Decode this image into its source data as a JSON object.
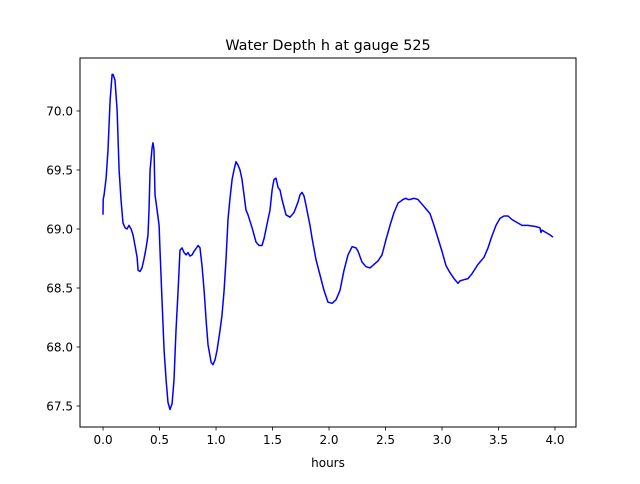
{
  "chart_data": {
    "type": "line",
    "title": "Water Depth h at gauge 525",
    "xlabel": "hours",
    "ylabel": "",
    "xlim": [
      -0.204,
      4.186
    ],
    "ylim": [
      67.322,
      70.449
    ],
    "xticks": [
      0.0,
      0.5,
      1.0,
      1.5,
      2.0,
      2.5,
      3.0,
      3.5,
      4.0
    ],
    "xtick_labels": [
      "0.0",
      "0.5",
      "1.0",
      "1.5",
      "2.0",
      "2.5",
      "3.0",
      "3.5",
      "4.0"
    ],
    "yticks": [
      67.5,
      68.0,
      68.5,
      69.0,
      69.5,
      70.0
    ],
    "ytick_labels": [
      "67.5",
      "68.0",
      "68.5",
      "69.0",
      "69.5",
      "70.0"
    ],
    "grid": false,
    "series": [
      {
        "name": "h",
        "color": "#0000ff",
        "x": [
          0.0,
          0.001,
          0.009,
          0.027,
          0.044,
          0.062,
          0.08,
          0.088,
          0.106,
          0.124,
          0.142,
          0.159,
          0.177,
          0.195,
          0.212,
          0.23,
          0.248,
          0.265,
          0.283,
          0.301,
          0.31,
          0.327,
          0.345,
          0.363,
          0.381,
          0.398,
          0.407,
          0.416,
          0.434,
          0.442,
          0.451,
          0.46,
          0.478,
          0.496,
          0.504,
          0.522,
          0.54,
          0.558,
          0.575,
          0.593,
          0.611,
          0.628,
          0.646,
          0.664,
          0.681,
          0.699,
          0.717,
          0.735,
          0.752,
          0.77,
          0.788,
          0.805,
          0.841,
          0.858,
          0.876,
          0.894,
          0.912,
          0.929,
          0.956,
          0.973,
          0.991,
          1.009,
          1.035,
          1.053,
          1.071,
          1.088,
          1.106,
          1.124,
          1.142,
          1.159,
          1.177,
          1.195,
          1.212,
          1.23,
          1.265,
          1.283,
          1.319,
          1.354,
          1.381,
          1.407,
          1.425,
          1.46,
          1.478,
          1.496,
          1.513,
          1.531,
          1.549,
          1.566,
          1.584,
          1.619,
          1.655,
          1.69,
          1.726,
          1.743,
          1.761,
          1.779,
          1.796,
          1.832,
          1.85,
          1.885,
          1.92,
          1.956,
          1.991,
          2.027,
          2.062,
          2.097,
          2.133,
          2.168,
          2.204,
          2.239,
          2.257,
          2.292,
          2.327,
          2.363,
          2.398,
          2.434,
          2.469,
          2.504,
          2.54,
          2.575,
          2.611,
          2.628,
          2.655,
          2.681,
          2.699,
          2.717,
          2.752,
          2.788,
          2.823,
          2.858,
          2.894,
          2.929,
          2.965,
          3.0,
          3.035,
          3.071,
          3.106,
          3.142,
          3.159,
          3.195,
          3.23,
          3.265,
          3.319,
          3.372,
          3.407,
          3.442,
          3.478,
          3.513,
          3.549,
          3.584,
          3.619,
          3.655,
          3.708,
          3.761,
          3.832,
          3.867,
          3.876,
          3.885,
          3.92,
          3.956,
          3.982
        ],
        "y": [
          69.12,
          69.25,
          69.29,
          69.43,
          69.67,
          70.09,
          70.31,
          70.31,
          70.26,
          70.01,
          69.5,
          69.25,
          69.05,
          69.01,
          69.0,
          69.03,
          69.0,
          68.95,
          68.86,
          68.76,
          68.65,
          68.64,
          68.67,
          68.75,
          68.84,
          68.95,
          69.16,
          69.5,
          69.69,
          69.73,
          69.67,
          69.29,
          69.16,
          69.03,
          68.82,
          68.4,
          67.97,
          67.72,
          67.53,
          67.47,
          67.52,
          67.72,
          68.14,
          68.48,
          68.82,
          68.84,
          68.8,
          68.78,
          68.8,
          68.77,
          68.78,
          68.81,
          68.86,
          68.84,
          68.69,
          68.48,
          68.23,
          68.02,
          67.87,
          67.85,
          67.89,
          67.97,
          68.14,
          68.27,
          68.48,
          68.74,
          69.08,
          69.26,
          69.42,
          69.5,
          69.57,
          69.54,
          69.5,
          69.42,
          69.16,
          69.12,
          69.01,
          68.89,
          68.86,
          68.86,
          68.92,
          69.08,
          69.16,
          69.33,
          69.42,
          69.43,
          69.35,
          69.33,
          69.25,
          69.12,
          69.1,
          69.14,
          69.23,
          69.29,
          69.31,
          69.28,
          69.2,
          69.03,
          68.92,
          68.74,
          68.61,
          68.48,
          68.38,
          68.37,
          68.4,
          68.48,
          68.65,
          68.78,
          68.85,
          68.84,
          68.81,
          68.72,
          68.68,
          68.67,
          68.7,
          68.73,
          68.78,
          68.91,
          69.03,
          69.14,
          69.22,
          69.23,
          69.25,
          69.26,
          69.25,
          69.25,
          69.26,
          69.25,
          69.21,
          69.17,
          69.13,
          69.03,
          68.92,
          68.81,
          68.69,
          68.63,
          68.58,
          68.54,
          68.56,
          68.57,
          68.58,
          68.62,
          68.7,
          68.76,
          68.84,
          68.94,
          69.03,
          69.09,
          69.11,
          69.11,
          69.08,
          69.06,
          69.03,
          69.03,
          69.02,
          69.01,
          68.97,
          68.99,
          68.97,
          68.95,
          68.93
        ]
      }
    ]
  }
}
